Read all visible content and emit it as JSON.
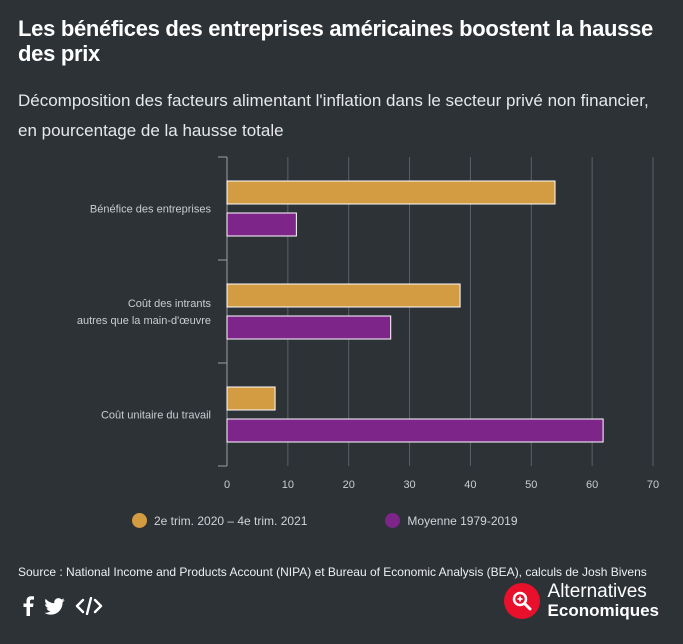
{
  "header": {
    "title": "Les bénéfices des entreprises américaines boostent la hausse des prix",
    "subtitle": "Décomposition des facteurs alimentant l'inflation dans le secteur privé non financier, en pourcentage de la hausse totale"
  },
  "chart_data": {
    "type": "bar",
    "orientation": "horizontal",
    "categories": [
      [
        "Bénéfice des entreprises"
      ],
      [
        "Coût des intrants",
        "autres que la main-d'œuvre"
      ],
      [
        "Coût unitaire du travail"
      ]
    ],
    "series": [
      {
        "name": "2e trim. 2020 – 4e trim. 2021",
        "color": "#d39b42",
        "values": [
          53.9,
          38.3,
          7.9
        ]
      },
      {
        "name": "Moyenne 1979-2019",
        "color": "#7d2589",
        "values": [
          11.4,
          26.9,
          61.8
        ]
      }
    ],
    "xlim": [
      0,
      70
    ],
    "xticks": [
      0,
      10,
      20,
      30,
      40,
      50,
      60,
      70
    ],
    "grid": true,
    "legend_position": "bottom",
    "title": "",
    "xlabel": "",
    "ylabel": ""
  },
  "footer": {
    "source": "Source :  National Income and Products Account (NIPA) et Bureau of Economic Analysis (BEA), calculs de Josh Bivens",
    "brand_line1": "Alternatives",
    "brand_line2": "Economiques"
  },
  "share": {
    "icons": [
      "facebook-icon",
      "twitter-icon",
      "embed-icon"
    ]
  }
}
